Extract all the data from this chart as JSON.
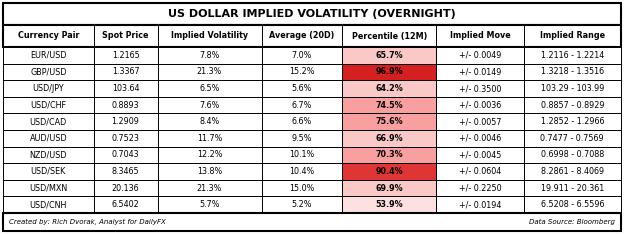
{
  "title": "US DOLLAR IMPLIED VOLATILITY (OVERNIGHT)",
  "columns": [
    "Currency Pair",
    "Spot Price",
    "Implied Volatility",
    "Average (20D)",
    "Percentile (12M)",
    "Implied Move",
    "Implied Range"
  ],
  "rows": [
    [
      "EUR/USD",
      "1.2165",
      "7.8%",
      "7.0%",
      "65.7%",
      "+/- 0.0049",
      "1.2116 - 1.2214"
    ],
    [
      "GBP/USD",
      "1.3367",
      "21.3%",
      "15.2%",
      "96.9%",
      "+/- 0.0149",
      "1.3218 - 1.3516"
    ],
    [
      "USD/JPY",
      "103.64",
      "6.5%",
      "5.6%",
      "64.2%",
      "+/- 0.3500",
      "103.29 - 103.99"
    ],
    [
      "USD/CHF",
      "0.8893",
      "7.6%",
      "6.7%",
      "74.5%",
      "+/- 0.0036",
      "0.8857 - 0.8929"
    ],
    [
      "USD/CAD",
      "1.2909",
      "8.4%",
      "6.6%",
      "75.6%",
      "+/- 0.0057",
      "1.2852 - 1.2966"
    ],
    [
      "AUD/USD",
      "0.7523",
      "11.7%",
      "9.5%",
      "66.9%",
      "+/- 0.0046",
      "0.7477 - 0.7569"
    ],
    [
      "NZD/USD",
      "0.7043",
      "12.2%",
      "10.1%",
      "70.3%",
      "+/- 0.0045",
      "0.6998 - 0.7088"
    ],
    [
      "USD/SEK",
      "8.3465",
      "13.8%",
      "10.4%",
      "90.4%",
      "+/- 0.0604",
      "8.2861 - 8.4069"
    ],
    [
      "USD/MXN",
      "20.136",
      "21.3%",
      "15.0%",
      "69.9%",
      "+/- 0.2250",
      "19.911 - 20.361"
    ],
    [
      "USD/CNH",
      "6.5402",
      "5.7%",
      "5.2%",
      "53.9%",
      "+/- 0.0194",
      "6.5208 - 6.5596"
    ]
  ],
  "percentile_values": [
    65.7,
    96.9,
    64.2,
    74.5,
    75.6,
    66.9,
    70.3,
    90.4,
    69.9,
    53.9
  ],
  "footer_left": "Created by: Rich Dvorak, Analyst for DailyFX",
  "footer_right": "Data Source: Bloomberg",
  "col_props": [
    0.135,
    0.095,
    0.155,
    0.12,
    0.14,
    0.13,
    0.145
  ],
  "title_fontsize": 8.0,
  "header_fontsize": 5.8,
  "cell_fontsize": 5.8,
  "footer_fontsize": 5.0
}
